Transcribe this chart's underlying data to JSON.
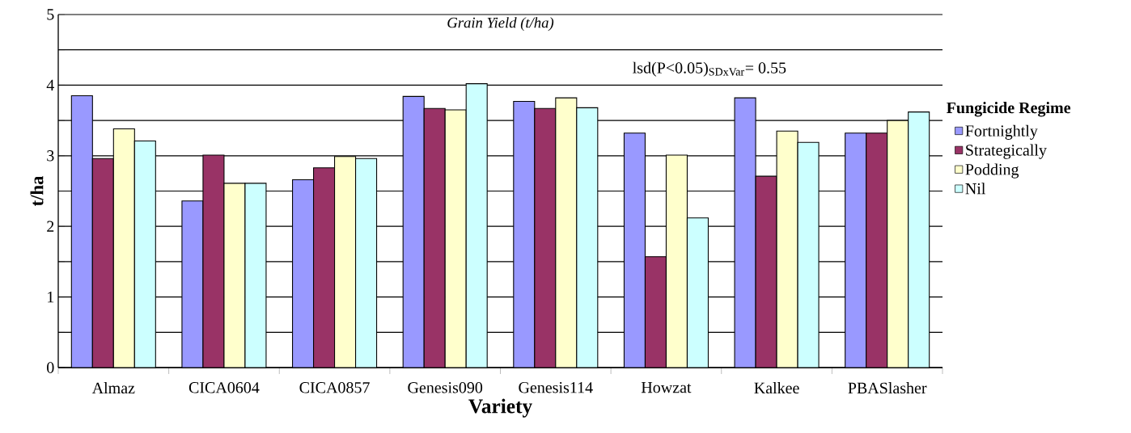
{
  "chart_data": {
    "type": "bar",
    "title": "Grain Yield (t/ha)",
    "xlabel": "Variety",
    "ylabel": "t/ha",
    "legend_title": "Fungicide Regime",
    "annotations": [
      "lsd(P<0.05)$_{SDxVar}$= 0.55"
    ],
    "categories": [
      "Almaz",
      "CICA0604",
      "CICA0857",
      "Genesis090",
      "Genesis114",
      "Howzat",
      "Kalkee",
      "PBASlasher"
    ],
    "series": [
      {
        "name": "Fortnightly",
        "color": "#9999ff",
        "values": [
          3.85,
          2.36,
          2.66,
          3.84,
          3.77,
          3.32,
          3.82,
          3.32
        ]
      },
      {
        "name": "Strategically",
        "color": "#993366",
        "values": [
          2.96,
          3.01,
          2.83,
          3.67,
          3.67,
          1.57,
          2.71,
          3.32
        ]
      },
      {
        "name": "Podding",
        "color": "#ffffcc",
        "values": [
          3.38,
          2.61,
          2.99,
          3.65,
          3.82,
          3.01,
          3.35,
          3.5
        ]
      },
      {
        "name": "Nil",
        "color": "#ccffff",
        "values": [
          3.21,
          2.61,
          2.96,
          4.02,
          3.68,
          2.12,
          3.19,
          3.62
        ]
      }
    ],
    "ylim": [
      0,
      5
    ],
    "yticks": [
      0,
      {
        "value": 0.5,
        "label": null
      },
      1,
      {
        "value": 1.5,
        "label": null
      },
      2,
      {
        "value": 2.5,
        "label": null
      },
      3,
      {
        "value": 3.5,
        "label": null
      },
      4,
      {
        "value": 4.5,
        "label": null
      },
      5
    ],
    "grid": "y",
    "legend": "right"
  }
}
